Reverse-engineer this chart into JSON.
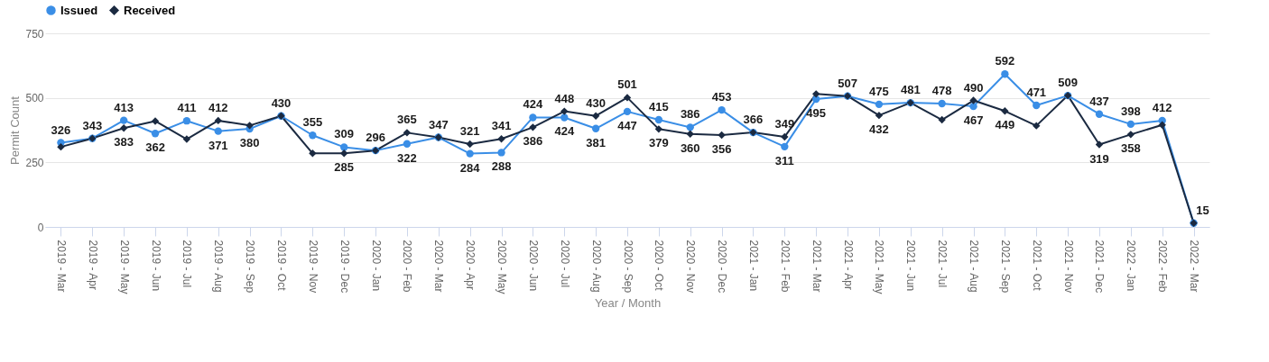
{
  "chart_data": {
    "type": "line",
    "xlabel": "Year / Month",
    "ylabel": "Permit Count",
    "categories": [
      "2019 - Mar",
      "2019 - Apr",
      "2019 - May",
      "2019 - Jun",
      "2019 - Jul",
      "2019 - Aug",
      "2019 - Sep",
      "2019 - Oct",
      "2019 - Nov",
      "2019 - Dec",
      "2020 - Jan",
      "2020 - Feb",
      "2020 - Mar",
      "2020 - Apr",
      "2020 - May",
      "2020 - Jun",
      "2020 - Jul",
      "2020 - Aug",
      "2020 - Sep",
      "2020 - Oct",
      "2020 - Nov",
      "2020 - Dec",
      "2021 - Jan",
      "2021 - Feb",
      "2021 - Mar",
      "2021 - Apr",
      "2021 - May",
      "2021 - Jun",
      "2021 - Jul",
      "2021 - Aug",
      "2021 - Sep",
      "2021 - Oct",
      "2021 - Nov",
      "2021 - Dec",
      "2022 - Jan",
      "2022 - Feb",
      "2022 - Mar"
    ],
    "series": [
      {
        "name": "Issued",
        "color": "#3a8ee6",
        "marker": "circle",
        "values": [
          326,
          343,
          413,
          362,
          411,
          371,
          380,
          430,
          355,
          309,
          296,
          322,
          347,
          284,
          288,
          424,
          424,
          381,
          447,
          415,
          386,
          453,
          366,
          311,
          495,
          507,
          475,
          481,
          478,
          467,
          592,
          471,
          509,
          437,
          398,
          412,
          15
        ],
        "value_labels": [
          "326",
          "343",
          "413",
          "362",
          "411",
          "371",
          "380",
          "430",
          "355",
          "309",
          "296",
          "322",
          "347",
          "284",
          "288",
          "424",
          "424",
          "381",
          "447",
          "415",
          "386",
          "453",
          "366",
          "311",
          "495",
          "507",
          "475",
          "481",
          "478",
          "467",
          "592",
          "471",
          "509",
          "437",
          "398",
          "412",
          "15"
        ]
      },
      {
        "name": "Received",
        "color": "#1b2a41",
        "marker": "diamond",
        "values": [
          310,
          343,
          383,
          410,
          340,
          412,
          393,
          430,
          285,
          285,
          296,
          365,
          347,
          321,
          341,
          386,
          448,
          430,
          501,
          379,
          360,
          356,
          366,
          349,
          515,
          507,
          432,
          481,
          415,
          490,
          449,
          392,
          509,
          319,
          358,
          395,
          15
        ],
        "value_labels": [
          null,
          null,
          "383",
          null,
          null,
          "412",
          null,
          null,
          null,
          "285",
          null,
          "365",
          null,
          "321",
          "341",
          "386",
          "448",
          "430",
          "501",
          "379",
          "360",
          "356",
          null,
          "349",
          null,
          null,
          "432",
          null,
          null,
          "490",
          "449",
          null,
          null,
          "319",
          "358",
          null,
          null
        ]
      }
    ],
    "ylim": [
      0,
      750
    ],
    "yticks": [
      0,
      250,
      500,
      750
    ],
    "grid": "y",
    "legend": "top"
  }
}
